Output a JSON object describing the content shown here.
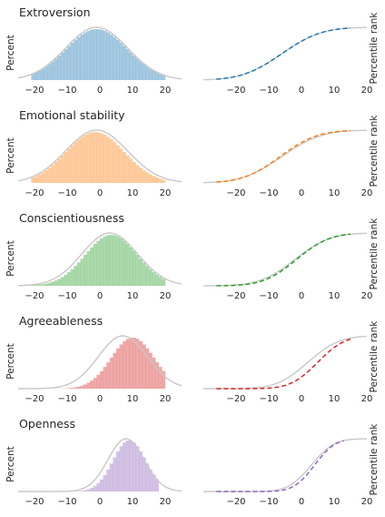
{
  "colors": {
    "normal_curve": "#c8c8c8",
    "tick_text": "#262626",
    "series": [
      "#1f77b4",
      "#ff7f0e",
      "#2ca02c",
      "#d62728",
      "#9467bd"
    ]
  },
  "chart_data": [
    {
      "type": "bar",
      "title": "Extroversion",
      "ylabel": "Percent",
      "xticks": [
        -20,
        -10,
        0,
        10,
        20
      ],
      "xlim": [
        -25,
        25
      ],
      "hist_mean": -1.0,
      "hist_sd": 9.5,
      "normal_mean": -1.0,
      "normal_sd": 9.5,
      "range": [
        -21,
        20
      ],
      "companion": {
        "type": "line",
        "ylabel": "Percentile rank",
        "xticks": [
          -20,
          -10,
          0,
          10,
          20
        ],
        "ylim": [
          0,
          100
        ]
      }
    },
    {
      "type": "bar",
      "title": "Emotional stability",
      "ylabel": "Percent",
      "xticks": [
        -20,
        -10,
        0,
        10,
        20
      ],
      "xlim": [
        -25,
        25
      ],
      "hist_mean": -1.5,
      "hist_sd": 9.0,
      "normal_mean": -1.0,
      "normal_sd": 9.5,
      "range": [
        -21,
        20
      ],
      "companion": {
        "type": "line",
        "ylabel": "Percentile rank",
        "xticks": [
          -20,
          -10,
          0,
          10,
          20
        ],
        "ylim": [
          0,
          100
        ]
      }
    },
    {
      "type": "bar",
      "title": "Conscientiousness",
      "ylabel": "Percent",
      "xticks": [
        -20,
        -10,
        0,
        10,
        20
      ],
      "xlim": [
        -25,
        25
      ],
      "hist_mean": 3.5,
      "hist_sd": 8.0,
      "normal_mean": 3.0,
      "normal_sd": 8.5,
      "range": [
        -21,
        20
      ],
      "companion": {
        "type": "line",
        "ylabel": "Percentile rank",
        "xticks": [
          -20,
          -10,
          0,
          10,
          20
        ],
        "ylim": [
          0,
          100
        ]
      }
    },
    {
      "type": "bar",
      "title": "Agreeableness",
      "ylabel": "Percent",
      "xticks": [
        -20,
        -10,
        0,
        10,
        20
      ],
      "xlim": [
        -25,
        25
      ],
      "hist_mean": 10.0,
      "hist_sd": 6.5,
      "normal_mean": 7.0,
      "normal_sd": 7.5,
      "range": [
        -21,
        20
      ],
      "companion": {
        "type": "line",
        "ylabel": "Percentile rank",
        "xticks": [
          -20,
          -10,
          0,
          10,
          20
        ],
        "ylim": [
          0,
          100
        ]
      }
    },
    {
      "type": "bar",
      "title": "Openness",
      "ylabel": "Percent",
      "xticks": [
        -20,
        -10,
        0,
        10,
        20
      ],
      "xlim": [
        -25,
        25
      ],
      "hist_mean": 9.0,
      "hist_sd": 5.0,
      "normal_mean": 8.0,
      "normal_sd": 5.5,
      "range": [
        -21,
        18
      ],
      "companion": {
        "type": "line",
        "ylabel": "Percentile rank",
        "xticks": [
          -20,
          -10,
          0,
          10,
          20
        ],
        "ylim": [
          0,
          100
        ]
      }
    }
  ]
}
